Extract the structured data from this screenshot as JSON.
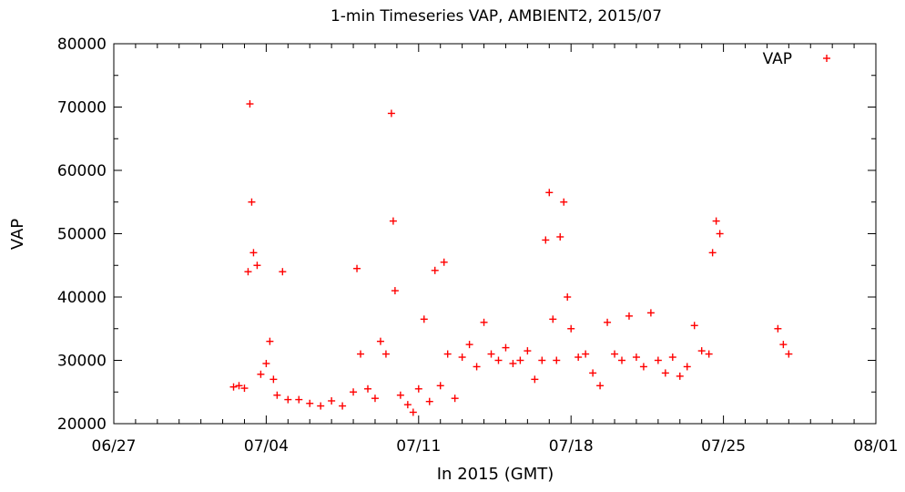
{
  "chart_data": {
    "type": "scatter",
    "title": "1-min Timeseries VAP, AMBIENT2, 2015/07",
    "xlabel": "In 2015 (GMT)",
    "ylabel": "VAP",
    "xlim": [
      "2015-06-27",
      "2015-08-01"
    ],
    "ylim": [
      20000,
      80000
    ],
    "x_ticks": [
      "06/27",
      "07/04",
      "07/11",
      "07/18",
      "07/25",
      "08/01"
    ],
    "y_ticks": [
      20000,
      30000,
      40000,
      50000,
      60000,
      70000,
      80000
    ],
    "grid": false,
    "legend": "top-right",
    "marker": "plus",
    "series": [
      {
        "name": "VAP",
        "color": "#ff0000",
        "points": [
          [
            "2015-07-02T12:00",
            25800
          ],
          [
            "2015-07-02T18:00",
            26000
          ],
          [
            "2015-07-03T00:00",
            25600
          ],
          [
            "2015-07-03T04:00",
            44000
          ],
          [
            "2015-07-03T06:00",
            70500
          ],
          [
            "2015-07-03T08:00",
            55000
          ],
          [
            "2015-07-03T10:00",
            47000
          ],
          [
            "2015-07-03T14:00",
            45000
          ],
          [
            "2015-07-03T18:00",
            27800
          ],
          [
            "2015-07-04T00:00",
            29500
          ],
          [
            "2015-07-04T04:00",
            33000
          ],
          [
            "2015-07-04T08:00",
            27000
          ],
          [
            "2015-07-04T12:00",
            24500
          ],
          [
            "2015-07-04T18:00",
            44000
          ],
          [
            "2015-07-05T00:00",
            23800
          ],
          [
            "2015-07-05T12:00",
            23800
          ],
          [
            "2015-07-06T00:00",
            23200
          ],
          [
            "2015-07-06T12:00",
            22800
          ],
          [
            "2015-07-07T00:00",
            23600
          ],
          [
            "2015-07-07T12:00",
            22800
          ],
          [
            "2015-07-08T00:00",
            25000
          ],
          [
            "2015-07-08T04:00",
            44500
          ],
          [
            "2015-07-08T08:00",
            31000
          ],
          [
            "2015-07-08T16:00",
            25500
          ],
          [
            "2015-07-09T00:00",
            24000
          ],
          [
            "2015-07-09T06:00",
            33000
          ],
          [
            "2015-07-09T12:00",
            31000
          ],
          [
            "2015-07-09T18:00",
            69000
          ],
          [
            "2015-07-09T20:00",
            52000
          ],
          [
            "2015-07-09T22:00",
            41000
          ],
          [
            "2015-07-10T04:00",
            24500
          ],
          [
            "2015-07-10T12:00",
            23000
          ],
          [
            "2015-07-10T18:00",
            21800
          ],
          [
            "2015-07-11T00:00",
            25500
          ],
          [
            "2015-07-11T06:00",
            36500
          ],
          [
            "2015-07-11T12:00",
            23500
          ],
          [
            "2015-07-11T18:00",
            44200
          ],
          [
            "2015-07-12T00:00",
            26000
          ],
          [
            "2015-07-12T04:00",
            45500
          ],
          [
            "2015-07-12T08:00",
            31000
          ],
          [
            "2015-07-12T16:00",
            24000
          ],
          [
            "2015-07-13T00:00",
            30500
          ],
          [
            "2015-07-13T08:00",
            32500
          ],
          [
            "2015-07-13T16:00",
            29000
          ],
          [
            "2015-07-14T00:00",
            36000
          ],
          [
            "2015-07-14T08:00",
            31000
          ],
          [
            "2015-07-14T16:00",
            30000
          ],
          [
            "2015-07-15T00:00",
            32000
          ],
          [
            "2015-07-15T08:00",
            29500
          ],
          [
            "2015-07-15T16:00",
            30000
          ],
          [
            "2015-07-16T00:00",
            31500
          ],
          [
            "2015-07-16T08:00",
            27000
          ],
          [
            "2015-07-16T16:00",
            30000
          ],
          [
            "2015-07-16T20:00",
            49000
          ],
          [
            "2015-07-17T00:00",
            56500
          ],
          [
            "2015-07-17T04:00",
            36500
          ],
          [
            "2015-07-17T08:00",
            30000
          ],
          [
            "2015-07-17T12:00",
            49500
          ],
          [
            "2015-07-17T16:00",
            55000
          ],
          [
            "2015-07-17T20:00",
            40000
          ],
          [
            "2015-07-18T00:00",
            35000
          ],
          [
            "2015-07-18T08:00",
            30500
          ],
          [
            "2015-07-18T16:00",
            31000
          ],
          [
            "2015-07-19T00:00",
            28000
          ],
          [
            "2015-07-19T08:00",
            26000
          ],
          [
            "2015-07-19T16:00",
            36000
          ],
          [
            "2015-07-20T00:00",
            31000
          ],
          [
            "2015-07-20T08:00",
            30000
          ],
          [
            "2015-07-20T16:00",
            37000
          ],
          [
            "2015-07-21T00:00",
            30500
          ],
          [
            "2015-07-21T08:00",
            29000
          ],
          [
            "2015-07-21T16:00",
            37500
          ],
          [
            "2015-07-22T00:00",
            30000
          ],
          [
            "2015-07-22T08:00",
            28000
          ],
          [
            "2015-07-22T16:00",
            30500
          ],
          [
            "2015-07-23T00:00",
            27500
          ],
          [
            "2015-07-23T08:00",
            29000
          ],
          [
            "2015-07-23T16:00",
            35500
          ],
          [
            "2015-07-24T00:00",
            31500
          ],
          [
            "2015-07-24T08:00",
            31000
          ],
          [
            "2015-07-24T12:00",
            47000
          ],
          [
            "2015-07-24T16:00",
            52000
          ],
          [
            "2015-07-24T20:00",
            50000
          ],
          [
            "2015-07-27T12:00",
            35000
          ],
          [
            "2015-07-27T18:00",
            32500
          ],
          [
            "2015-07-28T00:00",
            31000
          ]
        ]
      }
    ]
  }
}
